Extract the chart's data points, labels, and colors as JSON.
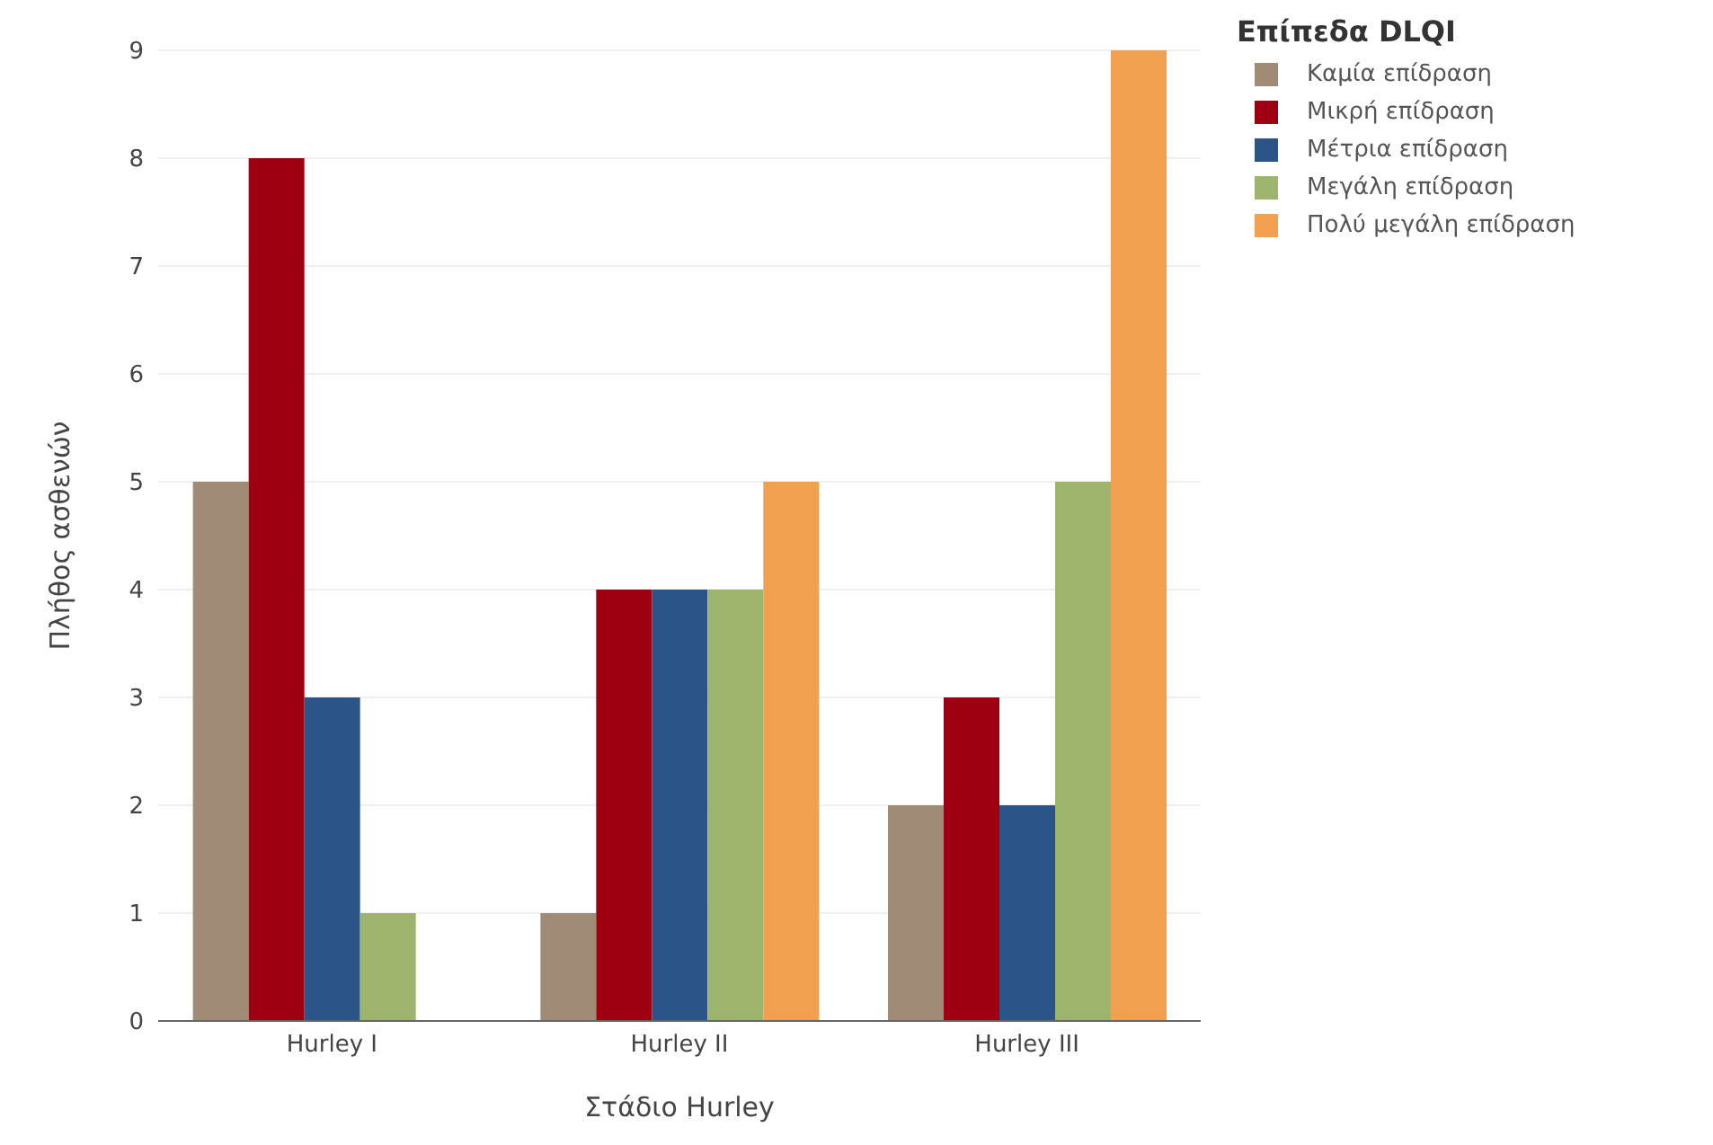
{
  "chart_data": {
    "type": "bar",
    "xlabel": "Στάδιο Hurley",
    "ylabel": "Πλήθος ασθενών",
    "legend_title": "Επίπεδα DLQI",
    "categories": [
      "Hurley I",
      "Hurley II",
      "Hurley III"
    ],
    "series": [
      {
        "name": "Καμία επίδραση",
        "color": "#a08c76",
        "values": [
          5,
          1,
          2
        ]
      },
      {
        "name": "Μικρή επίδραση",
        "color": "#9e0012",
        "values": [
          8,
          4,
          3
        ]
      },
      {
        "name": "Μέτρια επίδραση",
        "color": "#2b5488",
        "values": [
          3,
          4,
          2
        ]
      },
      {
        "name": "Μεγάλη επίδραση",
        "color": "#9db46c",
        "values": [
          1,
          4,
          5
        ]
      },
      {
        "name": "Πολύ μεγάλη επίδραση",
        "color": "#f0a04e",
        "values": [
          0,
          5,
          9
        ]
      }
    ],
    "ylim": [
      0,
      9
    ],
    "yticks": [
      0,
      1,
      2,
      3,
      4,
      5,
      6,
      7,
      8,
      9
    ],
    "grid": "y",
    "legend": "top right"
  }
}
